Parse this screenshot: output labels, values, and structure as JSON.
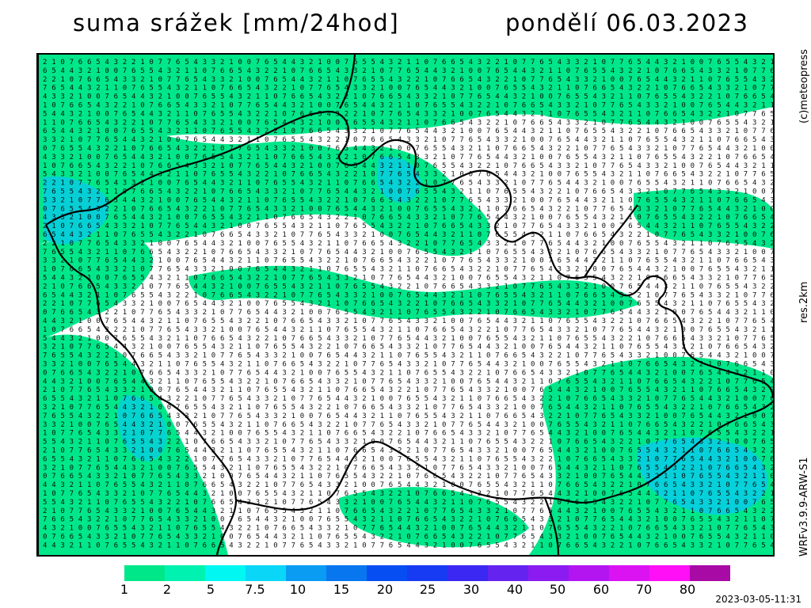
{
  "header": {
    "title": "suma srážek [mm/24hod]",
    "date": "pondělí 06.03.2023"
  },
  "side_labels": {
    "copyright": "(c)meteopress",
    "resolution": "res.2km",
    "model": "WRFv3.9.9-ARW-S1"
  },
  "legend": {
    "values": [
      "1",
      "2",
      "5",
      "7.5",
      "10",
      "15",
      "20",
      "25",
      "30",
      "40",
      "50",
      "60",
      "70",
      "80"
    ],
    "colors": [
      "#00e78a",
      "#00f2b0",
      "#00f7f2",
      "#0ad7f8",
      "#0a9cf2",
      "#0876ef",
      "#064ef2",
      "#173bf2",
      "#3b28f2",
      "#6523ef",
      "#8b1bf0",
      "#b315f0",
      "#db12f2",
      "#ff0ff5",
      "#a80aa6"
    ]
  },
  "footer": {
    "timestamp": "2023-03-05-11:31"
  }
}
